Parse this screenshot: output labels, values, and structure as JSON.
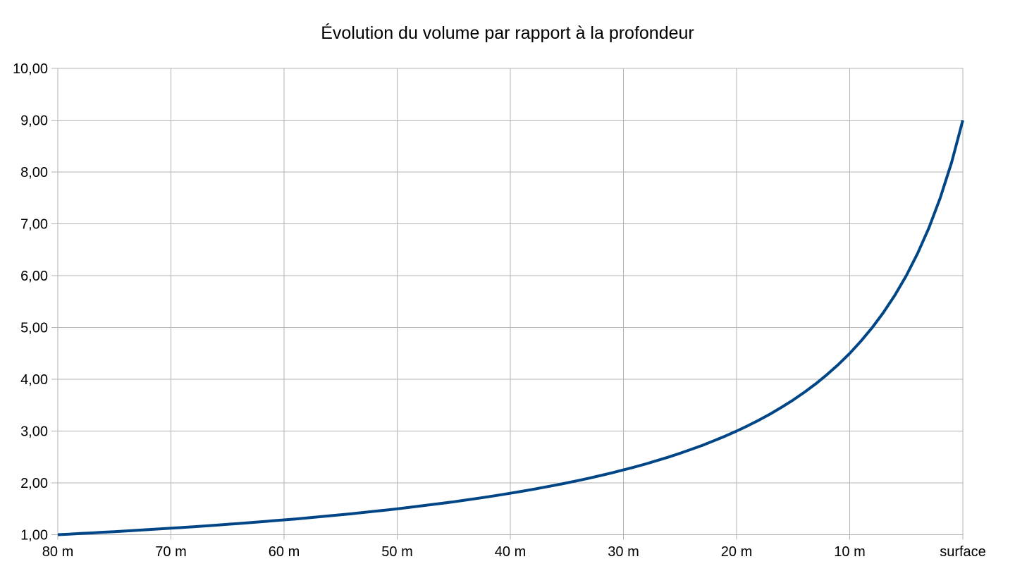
{
  "chart_data": {
    "type": "line",
    "title": "Évolution du volume par rapport à la profondeur",
    "xlabel": "",
    "ylabel": "",
    "categories": [
      "80 m",
      "70 m",
      "60 m",
      "50 m",
      "40 m",
      "30 m",
      "20 m",
      "10 m",
      "surface"
    ],
    "y_tick_labels": [
      "1,00",
      "2,00",
      "3,00",
      "4,00",
      "5,00",
      "6,00",
      "7,00",
      "8,00",
      "9,00",
      "10,00"
    ],
    "ylim": [
      1,
      10
    ],
    "xlim_depth_m": [
      80,
      0
    ],
    "grid": true,
    "legend": "none",
    "colors": {
      "line": "#004586",
      "grid": "#b3b3b3",
      "text": "#000000",
      "background": "#ffffff"
    },
    "series": [
      {
        "depths_m": [
          80,
          79,
          78,
          77,
          76,
          75,
          74,
          73,
          72,
          71,
          70,
          69,
          68,
          67,
          66,
          65,
          64,
          63,
          62,
          61,
          60,
          59,
          58,
          57,
          56,
          55,
          54,
          53,
          52,
          51,
          50,
          49,
          48,
          47,
          46,
          45,
          44,
          43,
          42,
          41,
          40,
          39,
          38,
          37,
          36,
          35,
          34,
          33,
          32,
          31,
          30,
          29,
          28,
          27,
          26,
          25,
          24,
          23,
          22,
          21,
          20,
          19,
          18,
          17,
          16,
          15,
          14,
          13,
          12,
          11,
          10,
          9,
          8,
          7,
          6,
          5,
          4,
          3,
          2,
          1,
          0
        ],
        "values": [
          1.0,
          1.011,
          1.023,
          1.034,
          1.047,
          1.059,
          1.071,
          1.084,
          1.098,
          1.111,
          1.125,
          1.139,
          1.154,
          1.169,
          1.184,
          1.2,
          1.216,
          1.233,
          1.25,
          1.268,
          1.286,
          1.304,
          1.324,
          1.343,
          1.364,
          1.385,
          1.406,
          1.429,
          1.452,
          1.475,
          1.5,
          1.525,
          1.552,
          1.579,
          1.607,
          1.636,
          1.667,
          1.698,
          1.731,
          1.765,
          1.8,
          1.837,
          1.875,
          1.915,
          1.957,
          2.0,
          2.045,
          2.093,
          2.143,
          2.195,
          2.25,
          2.308,
          2.368,
          2.432,
          2.5,
          2.571,
          2.647,
          2.727,
          2.813,
          2.903,
          3.0,
          3.103,
          3.214,
          3.333,
          3.462,
          3.6,
          3.75,
          3.913,
          4.091,
          4.286,
          4.5,
          4.737,
          5.0,
          5.294,
          5.625,
          6.0,
          6.429,
          6.923,
          7.5,
          8.182,
          9.0
        ]
      }
    ],
    "reference_points": {
      "80 m": 1.0,
      "70 m": 1.125,
      "60 m": 1.286,
      "50 m": 1.5,
      "40 m": 1.8,
      "30 m": 2.25,
      "20 m": 3.0,
      "10 m": 4.5,
      "surface": 9.0
    }
  }
}
